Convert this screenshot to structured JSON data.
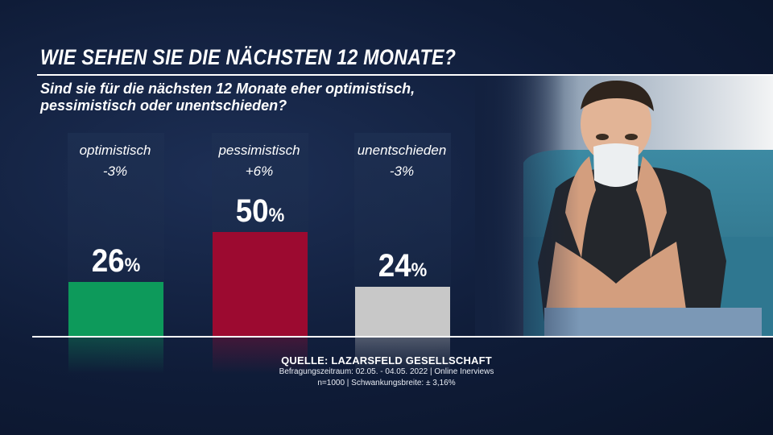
{
  "header": {
    "title": "WIE SEHEN SIE DIE NÄCHSTEN 12 MONATE?",
    "subtitle": "Sind sie für die nächsten 12 Monate eher optimistisch,\npessimistisch oder unentschieden?"
  },
  "chart_data": {
    "type": "bar",
    "categories": [
      "optimistisch",
      "pessimistisch",
      "unentschieden"
    ],
    "changes": [
      "-3%",
      "+6%",
      "-3%"
    ],
    "values": [
      26,
      50,
      24
    ],
    "value_labels": [
      "26",
      "50",
      "24"
    ],
    "unit": "%",
    "colors": [
      "#0d9a5b",
      "#9c0a30",
      "#c8c8c8"
    ],
    "ylim": [
      0,
      50
    ],
    "grid": false,
    "legend": "none"
  },
  "source": {
    "title": "QUELLE:  LAZARSFELD GESELLSCHAFT",
    "line1": "Befragungszeitraum: 02.05. - 04.05. 2022 | Online Inerviews",
    "line2": "n=1000 |  Schwankungsbreite: ± 3,16%"
  },
  "photo": {
    "icon": "person-with-face-mask-photo"
  }
}
